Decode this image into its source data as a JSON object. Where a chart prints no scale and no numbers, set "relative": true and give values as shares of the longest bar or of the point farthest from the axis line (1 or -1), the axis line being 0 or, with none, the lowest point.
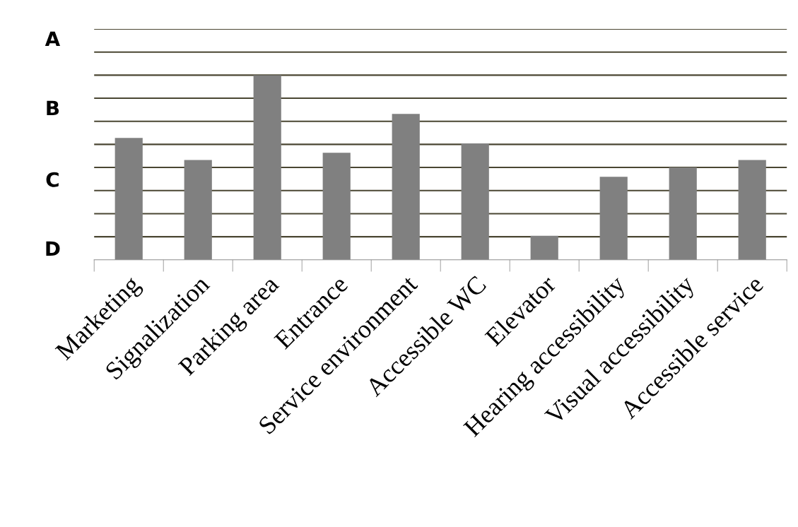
{
  "chart_data": {
    "type": "bar",
    "categories": [
      "Marketing",
      "Signalization",
      "Parking area",
      "Entrance",
      "Service environment",
      "Accessible WC",
      "Elevator",
      "Hearing accessibility",
      "Visual accessibility",
      "Accessible service"
    ],
    "values": [
      0.66,
      0.54,
      1,
      0.58,
      0.79,
      0.63,
      0.13,
      0.45,
      0.5,
      0.54
    ],
    "relative": true,
    "color": "#808080",
    "annotations": [
      "A",
      "B",
      "C",
      "D"
    ],
    "grid": "y"
  }
}
